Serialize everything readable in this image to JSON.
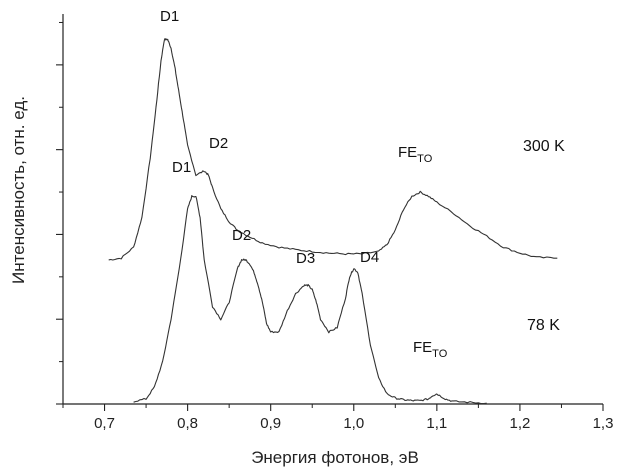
{
  "chart_data": {
    "type": "line",
    "title": "",
    "xlabel": "Энергия фотонов, эВ",
    "ylabel": "Интенсивность, отн. ед.",
    "xlim": [
      0.65,
      1.3
    ],
    "ylim": [
      0,
      4.6
    ],
    "x_ticks": [
      0.7,
      0.8,
      0.9,
      1.0,
      1.1,
      1.2,
      1.3
    ],
    "x_tick_labels": [
      "0,7",
      "0,8",
      "0,9",
      "1,0",
      "1,1",
      "1,2",
      "1,3"
    ],
    "y_major_ticks": [
      0,
      1,
      2,
      3,
      4
    ],
    "grid": false,
    "legend": "none",
    "series": [
      {
        "name": "300 K",
        "color": "#333333",
        "x": [
          0.705,
          0.72,
          0.735,
          0.745,
          0.755,
          0.762,
          0.768,
          0.772,
          0.776,
          0.78,
          0.785,
          0.79,
          0.795,
          0.8,
          0.81,
          0.82,
          0.825,
          0.83,
          0.84,
          0.85,
          0.86,
          0.875,
          0.89,
          0.91,
          0.93,
          0.95,
          0.97,
          0.99,
          1.01,
          1.03,
          1.04,
          1.05,
          1.06,
          1.07,
          1.08,
          1.09,
          1.1,
          1.12,
          1.14,
          1.16,
          1.18,
          1.2,
          1.22,
          1.245
        ],
        "y": [
          1.7,
          1.72,
          1.85,
          2.2,
          2.9,
          3.5,
          4.05,
          4.3,
          4.3,
          4.2,
          3.95,
          3.65,
          3.35,
          3.05,
          2.7,
          2.75,
          2.7,
          2.55,
          2.3,
          2.15,
          2.05,
          1.97,
          1.9,
          1.85,
          1.82,
          1.8,
          1.78,
          1.77,
          1.77,
          1.8,
          1.88,
          2.05,
          2.3,
          2.45,
          2.5,
          2.45,
          2.38,
          2.25,
          2.1,
          1.98,
          1.85,
          1.78,
          1.73,
          1.72
        ]
      },
      {
        "name": "78 K",
        "color": "#333333",
        "x": [
          0.735,
          0.75,
          0.76,
          0.77,
          0.78,
          0.79,
          0.8,
          0.805,
          0.81,
          0.815,
          0.82,
          0.83,
          0.84,
          0.85,
          0.86,
          0.865,
          0.87,
          0.875,
          0.88,
          0.885,
          0.89,
          0.895,
          0.9,
          0.91,
          0.92,
          0.93,
          0.94,
          0.945,
          0.95,
          0.955,
          0.96,
          0.97,
          0.98,
          0.99,
          0.995,
          1.0,
          1.005,
          1.01,
          1.02,
          1.03,
          1.04,
          1.05,
          1.06,
          1.07,
          1.08,
          1.09,
          1.095,
          1.1,
          1.11,
          1.12,
          1.14,
          1.16
        ],
        "y": [
          0.03,
          0.06,
          0.2,
          0.5,
          1.0,
          1.6,
          2.3,
          2.45,
          2.45,
          2.2,
          1.7,
          1.15,
          1.0,
          1.2,
          1.6,
          1.7,
          1.7,
          1.65,
          1.55,
          1.4,
          1.2,
          0.95,
          0.85,
          0.85,
          1.1,
          1.3,
          1.4,
          1.4,
          1.35,
          1.2,
          1.0,
          0.85,
          0.9,
          1.25,
          1.5,
          1.6,
          1.55,
          1.3,
          0.7,
          0.3,
          0.12,
          0.07,
          0.05,
          0.04,
          0.04,
          0.06,
          0.1,
          0.12,
          0.06,
          0.03,
          0.02,
          0.01
        ]
      }
    ],
    "annotations": {
      "top_d1": "D1",
      "top_d2": "D2",
      "top_fe": "FE",
      "top_fe_sub": "TO",
      "top_temp": "300 K",
      "bot_d1": "D1",
      "bot_d2": "D2",
      "bot_d3": "D3",
      "bot_d4": "D4",
      "bot_fe": "FE",
      "bot_fe_sub": "TO",
      "bot_temp": "78 K"
    }
  }
}
